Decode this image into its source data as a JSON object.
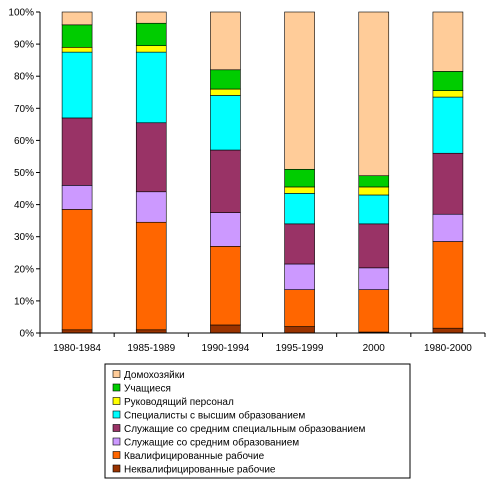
{
  "chart_data": {
    "type": "bar",
    "stacked": true,
    "normalized": true,
    "categories": [
      "1980-1984",
      "1985-1989",
      "1990-1994",
      "1995-1999",
      "2000",
      "1980-2000"
    ],
    "ylim": [
      0,
      100
    ],
    "yticks": [
      "0%",
      "10%",
      "20%",
      "30%",
      "40%",
      "50%",
      "60%",
      "70%",
      "80%",
      "90%",
      "100%"
    ],
    "grid": false,
    "legend_position": "bottom",
    "series": [
      {
        "name": "Неквалифицированные рабочие",
        "color": "#993300",
        "values": [
          1,
          1,
          2.5,
          2,
          0.3,
          1.5
        ]
      },
      {
        "name": "Квалифицированные рабочие",
        "color": "#FF6600",
        "values": [
          37.5,
          33.5,
          24.5,
          11.5,
          13.2,
          27
        ]
      },
      {
        "name": "Служащие со средним  образованием",
        "color": "#CC99FF",
        "values": [
          7.5,
          9.5,
          10.5,
          8,
          6.8,
          8.5
        ]
      },
      {
        "name": "Служащие со средним специальным  образованием",
        "color": "#993366",
        "values": [
          21,
          21.5,
          19.5,
          12.5,
          13.7,
          19
        ]
      },
      {
        "name": "Специалисты с высшим образованием",
        "color": "#00FFFF",
        "values": [
          20.5,
          22,
          17,
          9.5,
          9,
          17.5
        ]
      },
      {
        "name": "Руководящий персонал",
        "color": "#FFFF00",
        "values": [
          1.5,
          2,
          2,
          2,
          2.5,
          2
        ]
      },
      {
        "name": "Учащиеся",
        "color": "#00CC00",
        "values": [
          7,
          7,
          6,
          5.5,
          3.5,
          6
        ]
      },
      {
        "name": "Домохозяйки",
        "color": "#FFCC99",
        "values": [
          4,
          3.5,
          18,
          49,
          51,
          18.5
        ]
      }
    ]
  }
}
